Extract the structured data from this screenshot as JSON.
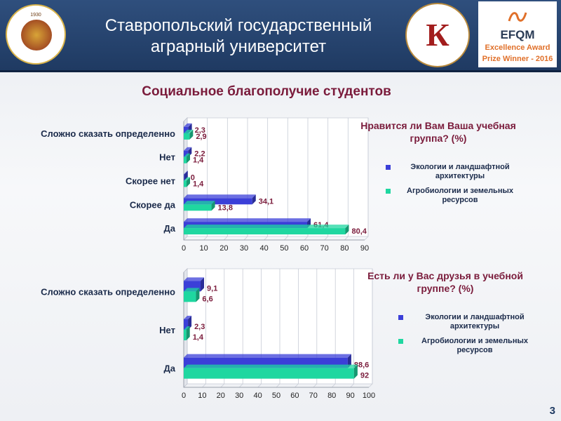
{
  "header": {
    "title_line1": "Ставропольский государственный",
    "title_line2": "аграрный университет",
    "uni_logo_year": "1930",
    "quality_logo_letter": "К",
    "efqm": {
      "name": "EFQM",
      "line1": "Excellence Award",
      "line2": "Prize Winner - 2016"
    }
  },
  "page_title": "Социальное благополучие студентов",
  "page_number": "3",
  "colors": {
    "series1": "#3b3fd8",
    "series2": "#1fd7a0",
    "title": "#7a1b3b"
  },
  "chart_data": [
    {
      "type": "bar",
      "orientation": "horizontal",
      "title_line1": "Нравится ли Вам Ваша учебная",
      "title_line2": "группа? (%)",
      "categories": [
        "Сложно сказать определенно",
        "Нет",
        "Скорее нет",
        "Скорее да",
        "Да"
      ],
      "series": [
        {
          "name_line1": "Экологии и ландшафтной",
          "name_line2": "архитектуры",
          "values": [
            2.3,
            2.2,
            0,
            34.1,
            61.4
          ],
          "labels": [
            "2,3",
            "2,2",
            "0",
            "34,1",
            "61,4"
          ]
        },
        {
          "name_line1": "Агробиологии и земельных",
          "name_line2": "ресурсов",
          "values": [
            2.9,
            1.4,
            1.4,
            13.8,
            80.4
          ],
          "labels": [
            "2,9",
            "1,4",
            "1,4",
            "13,8",
            "80,4"
          ]
        }
      ],
      "xlim": [
        0,
        90
      ],
      "ticks": [
        0,
        10,
        20,
        30,
        40,
        50,
        60,
        70,
        80,
        90
      ],
      "legend": "right"
    },
    {
      "type": "bar",
      "orientation": "horizontal",
      "title_line1": "Есть ли у Вас друзья в учебной",
      "title_line2": "группе? (%)",
      "categories": [
        "Сложно сказать определенно",
        "Нет",
        "Да"
      ],
      "series": [
        {
          "name_line1": "Экологии и ландшафтной",
          "name_line2": "архитектуры",
          "values": [
            9.1,
            2.3,
            88.6
          ],
          "labels": [
            "9,1",
            "2,3",
            "88,6"
          ]
        },
        {
          "name_line1": "Агробиологии и земельных",
          "name_line2": "ресурсов",
          "values": [
            6.6,
            1.4,
            92
          ],
          "labels": [
            "6,6",
            "1,4",
            "92"
          ]
        }
      ],
      "xlim": [
        0,
        100
      ],
      "ticks": [
        0,
        10,
        20,
        30,
        40,
        50,
        60,
        70,
        80,
        90,
        100
      ],
      "legend": "right"
    }
  ]
}
